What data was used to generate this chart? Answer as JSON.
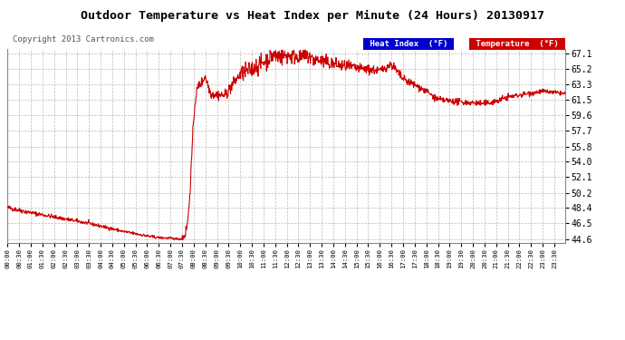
{
  "title": "Outdoor Temperature vs Heat Index per Minute (24 Hours) 20130917",
  "copyright": "Copyright 2013 Cartronics.com",
  "background_color": "#ffffff",
  "plot_background": "#ffffff",
  "grid_color": "#bbbbbb",
  "line_color": "#cc0000",
  "yticks": [
    44.6,
    46.5,
    48.4,
    50.2,
    52.1,
    54.0,
    55.8,
    57.7,
    59.6,
    61.5,
    63.3,
    65.2,
    67.1
  ],
  "ylim": [
    44.1,
    67.6
  ],
  "legend_heat_index_bg": "#0000cc",
  "legend_temp_bg": "#cc0000"
}
